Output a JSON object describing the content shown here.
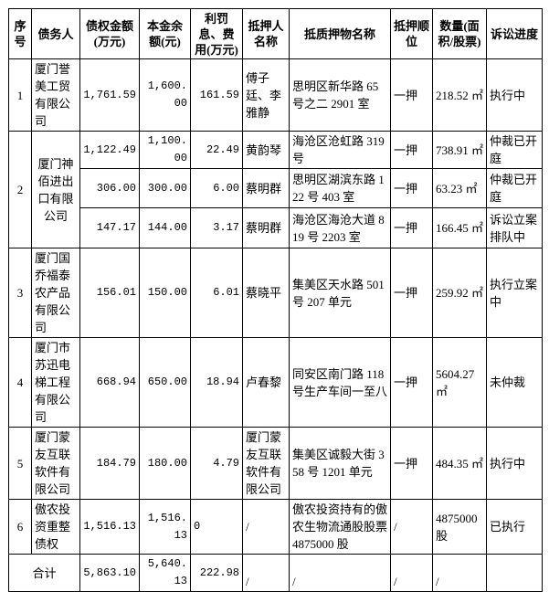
{
  "headers": [
    "序号",
    "债务人",
    "债权金额(万元)",
    "本金余额(元)",
    "利罚息、费用(万元)",
    "抵押人名称",
    "抵质押物名称",
    "抵押顺位",
    "数量(面积/股票)",
    "诉讼进度"
  ],
  "rows": [
    {
      "seq": "1",
      "debtor": "厦门誉美工贸有限公司",
      "items": [
        {
          "amount": "1,761.59",
          "principal": "1,600.00",
          "interest": "161.59",
          "mortgagor": "傅子廷、李雅静",
          "collateral": "思明区新华路 65 号之二 2901 室",
          "order": "一押",
          "quantity": "218.52 ㎡",
          "status": "执行中"
        }
      ]
    },
    {
      "seq": "2",
      "debtor": "厦门神佰进出口有限公司",
      "items": [
        {
          "amount": "1,122.49",
          "principal": "1,100.00",
          "interest": "22.49",
          "mortgagor": "黄韵琴",
          "collateral": "海沧区沧虹路 319 号",
          "order": "一押",
          "quantity": "738.91 ㎡",
          "status": "仲裁已开庭"
        },
        {
          "amount": "306.00",
          "principal": "300.00",
          "interest": "6.00",
          "mortgagor": "蔡明群",
          "collateral": "思明区湖滨东路 122 号 403 室",
          "order": "一押",
          "quantity": "63.23 ㎡",
          "status": "仲裁已开庭"
        },
        {
          "amount": "147.17",
          "principal": "144.00",
          "interest": "3.17",
          "mortgagor": "蔡明群",
          "collateral": "海沧区海沧大道 819 号 2203 室",
          "order": "一押",
          "quantity": "166.45 ㎡",
          "status": "诉讼立案排队中"
        }
      ]
    },
    {
      "seq": "3",
      "debtor": "厦门国乔福泰农产品有限公司",
      "items": [
        {
          "amount": "156.01",
          "principal": "150.00",
          "interest": "6.01",
          "mortgagor": "蔡晓平",
          "collateral": "集美区天水路 501 号 207 单元",
          "order": "一押",
          "quantity": "259.92 ㎡",
          "status": "执行立案中"
        }
      ]
    },
    {
      "seq": "4",
      "debtor": "厦门市苏迅电梯工程有限公司",
      "items": [
        {
          "amount": "668.94",
          "principal": "650.00",
          "interest": "18.94",
          "mortgagor": "卢春黎",
          "collateral": "同安区南门路 118 号生产车间一至八",
          "order": "一押",
          "quantity": "5604.27 ㎡",
          "status": "未仲裁"
        }
      ]
    },
    {
      "seq": "5",
      "debtor": "厦门蒙友互联软件有限公司",
      "items": [
        {
          "amount": "184.79",
          "principal": "180.00",
          "interest": "4.79",
          "mortgagor": "厦门蒙友互联软件有限公司",
          "collateral": "集美区诚毅大街 358 号 1201 单元",
          "order": "一押",
          "quantity": "484.35 ㎡",
          "status": "执行中"
        }
      ]
    },
    {
      "seq": "6",
      "debtor": "傲农投资重整债权",
      "items": [
        {
          "amount": "1,516.13",
          "principal": "1,516.13",
          "interest": "0",
          "mortgagor": "/",
          "collateral": "傲农投资持有的傲农生物流通股股票 4875000 股",
          "order": "/",
          "quantity": "4875000 股",
          "status": "已执行"
        }
      ]
    }
  ],
  "total": {
    "label": "合计",
    "amount": "5,863.10",
    "principal": "5,640.13",
    "interest": "222.98",
    "mortgagor": "/",
    "collateral": "/",
    "order": "/",
    "quantity": "/",
    "status": ""
  }
}
